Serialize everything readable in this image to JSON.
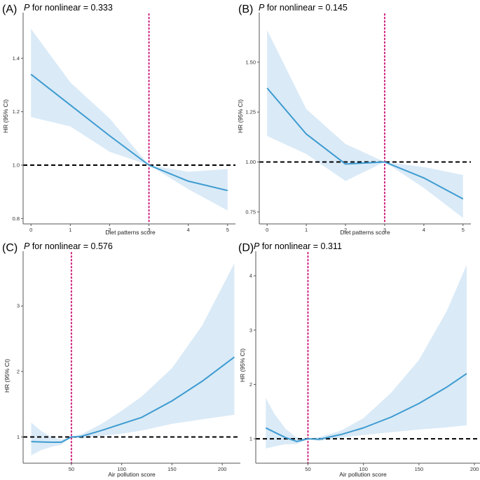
{
  "chart_data": [
    {
      "type": "line",
      "panel_label": "(A)",
      "title_italic": "P",
      "title_rest": " for nonlinear = 0.333",
      "xlabel": "Diet patterns score",
      "ylabel": "HR (95% CI)",
      "xlim": [
        -0.2,
        5.2
      ],
      "ylim": [
        0.78,
        1.55
      ],
      "x_ticks": [
        0,
        1,
        2,
        3,
        4,
        5
      ],
      "x_tick_labels": [
        "0",
        "1",
        "2",
        "3",
        "4",
        "5"
      ],
      "y_ticks": [
        0.8,
        1.0,
        1.2,
        1.4
      ],
      "y_tick_labels": [
        "0.8",
        "1.0",
        "1.2",
        "1.4"
      ],
      "reference_hr": 1.0,
      "reference_x": 3,
      "series": {
        "name": "HR",
        "x": [
          0,
          1,
          2,
          3,
          4,
          5
        ],
        "y": [
          1.34,
          1.225,
          1.11,
          1.0,
          0.94,
          0.905
        ],
        "lower": [
          1.18,
          1.145,
          1.05,
          1.0,
          0.91,
          0.83
        ],
        "upper": [
          1.51,
          1.31,
          1.175,
          1.0,
          0.975,
          0.985
        ]
      }
    },
    {
      "type": "line",
      "panel_label": "(B)",
      "title_italic": "P",
      "title_rest": " for nonlinear = 0.145",
      "xlabel": "Diet patterns score",
      "ylabel": "HR (95% CI)",
      "xlim": [
        -0.2,
        5.2
      ],
      "ylim": [
        0.69,
        1.72
      ],
      "x_ticks": [
        0,
        1,
        2,
        3,
        4,
        5
      ],
      "x_tick_labels": [
        "0",
        "1",
        "2",
        "3",
        "4",
        "5"
      ],
      "y_ticks": [
        0.75,
        1.0,
        1.25,
        1.5
      ],
      "y_tick_labels": [
        "0.75",
        "1.00",
        "1.25",
        "1.50"
      ],
      "reference_hr": 1.0,
      "reference_x": 3,
      "series": {
        "name": "HR",
        "x": [
          0,
          1,
          2,
          3,
          4,
          5
        ],
        "y": [
          1.37,
          1.14,
          0.99,
          1.0,
          0.92,
          0.815
        ],
        "lower": [
          1.13,
          1.04,
          0.905,
          1.0,
          0.87,
          0.72
        ],
        "upper": [
          1.66,
          1.265,
          1.09,
          1.0,
          0.975,
          0.935
        ]
      }
    },
    {
      "type": "line",
      "panel_label": "(C)",
      "title_italic": "P",
      "title_rest": " for nonlinear = 0.576",
      "xlabel": "Air pollution score",
      "ylabel": "HR (95% CI)",
      "xlim": [
        2,
        218
      ],
      "ylim": [
        0.6,
        3.75
      ],
      "x_ticks": [
        50,
        100,
        150,
        200
      ],
      "x_tick_labels": [
        "50",
        "100",
        "150",
        "200"
      ],
      "y_ticks": [
        1,
        2,
        3
      ],
      "y_tick_labels": [
        "1",
        "2",
        "3"
      ],
      "reference_hr": 1.0,
      "reference_x": 50,
      "series": {
        "name": "HR",
        "x": [
          10,
          20,
          30,
          40,
          50,
          60,
          80,
          100,
          120,
          150,
          180,
          212
        ],
        "y": [
          0.93,
          0.925,
          0.92,
          0.92,
          1.0,
          1.01,
          1.1,
          1.2,
          1.3,
          1.55,
          1.85,
          2.22
        ],
        "lower": [
          0.72,
          0.8,
          0.85,
          0.88,
          1.0,
          0.975,
          1.02,
          1.05,
          1.1,
          1.2,
          1.27,
          1.34
        ],
        "upper": [
          1.22,
          1.09,
          1.0,
          0.96,
          1.0,
          1.04,
          1.2,
          1.4,
          1.62,
          2.05,
          2.7,
          3.65
        ]
      }
    },
    {
      "type": "line",
      "panel_label": "(D)",
      "title_italic": "P",
      "title_rest": " for nonlinear = 0.311",
      "xlabel": "Air pollution score",
      "ylabel": "HR (95% CI)",
      "xlim": [
        3,
        205
      ],
      "ylim": [
        0.55,
        4.35
      ],
      "x_ticks": [
        50,
        100,
        150,
        200
      ],
      "x_tick_labels": [
        "50",
        "100",
        "150",
        "200"
      ],
      "y_ticks": [
        1,
        2,
        3,
        4
      ],
      "y_tick_labels": [
        "1",
        "2",
        "3",
        "4"
      ],
      "reference_hr": 1.0,
      "reference_x": 50,
      "series": {
        "name": "HR",
        "x": [
          12,
          20,
          30,
          40,
          50,
          60,
          80,
          100,
          125,
          150,
          175,
          193
        ],
        "y": [
          1.2,
          1.12,
          1.02,
          0.95,
          1.0,
          0.99,
          1.08,
          1.2,
          1.4,
          1.65,
          1.95,
          2.2
        ],
        "lower": [
          0.82,
          0.86,
          0.9,
          0.9,
          1.0,
          0.96,
          1.02,
          1.07,
          1.12,
          1.17,
          1.21,
          1.25
        ],
        "upper": [
          1.75,
          1.45,
          1.18,
          1.02,
          1.0,
          1.03,
          1.15,
          1.38,
          1.85,
          2.45,
          3.35,
          4.2
        ]
      }
    }
  ],
  "styles": {
    "line_color": "#3d9bd0",
    "band_color": "#daeaf7",
    "reference_line_color": "#000000",
    "marker_line_color": "#cc1f7a",
    "axis_color": "#555555"
  }
}
